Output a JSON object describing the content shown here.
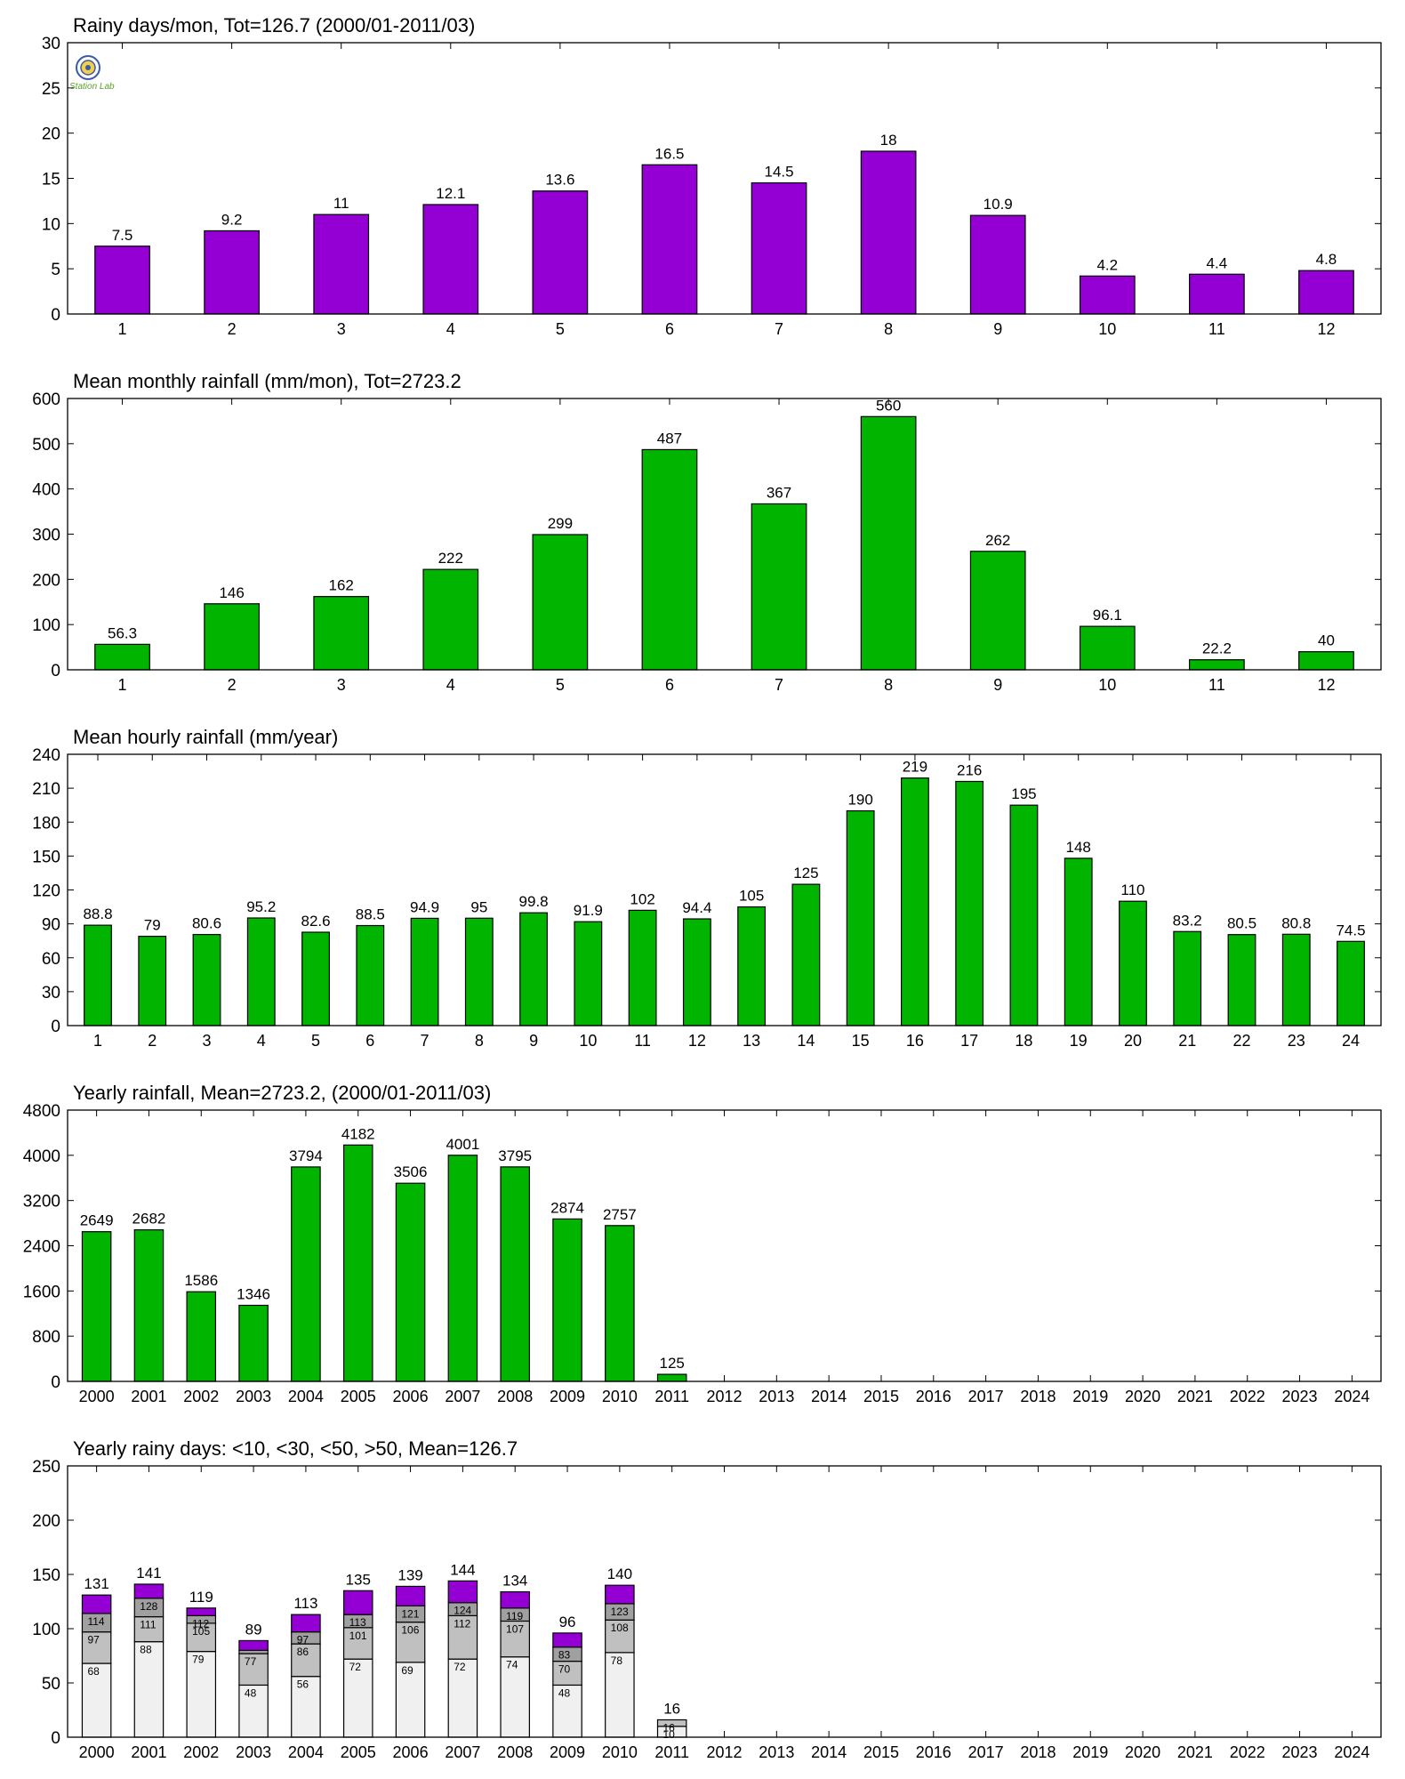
{
  "colors": {
    "purple": "#9400D3",
    "green": "#00B400",
    "gray_light": "#F0F0F0",
    "gray_mid": "#C0C0C0",
    "gray_dark": "#A0A0A0"
  },
  "logo": {
    "icon": "station-logo-icon",
    "text": "Station Lab"
  },
  "chart_data": [
    {
      "type": "bar",
      "title": "Rainy days/mon, Tot=126.7 (2000/01-2011/03)",
      "categories": [
        "1",
        "2",
        "3",
        "4",
        "5",
        "6",
        "7",
        "8",
        "9",
        "10",
        "11",
        "12"
      ],
      "values": [
        7.5,
        9.2,
        11,
        12.1,
        13.6,
        16.5,
        14.5,
        18,
        10.9,
        4.2,
        4.4,
        4.8
      ],
      "labels": [
        "7.5",
        "9.2",
        "11",
        "12.1",
        "13.6",
        "16.5",
        "14.5",
        "18",
        "10.9",
        "4.2",
        "4.4",
        "4.8"
      ],
      "ylim": [
        0,
        30
      ],
      "yticks": [
        "0",
        "5",
        "10",
        "15",
        "20",
        "25",
        "30"
      ],
      "color": "#9400D3"
    },
    {
      "type": "bar",
      "title": "Mean monthly rainfall (mm/mon), Tot=2723.2",
      "categories": [
        "1",
        "2",
        "3",
        "4",
        "5",
        "6",
        "7",
        "8",
        "9",
        "10",
        "11",
        "12"
      ],
      "values": [
        56.3,
        146,
        162,
        222,
        299,
        487,
        367,
        560,
        262,
        96.1,
        22.2,
        40
      ],
      "labels": [
        "56.3",
        "146",
        "162",
        "222",
        "299",
        "487",
        "367",
        "560",
        "262",
        "96.1",
        "22.2",
        "40"
      ],
      "ylim": [
        0,
        600
      ],
      "yticks": [
        "0",
        "100",
        "200",
        "300",
        "400",
        "500",
        "600"
      ],
      "color": "#00B400"
    },
    {
      "type": "bar",
      "title": "Mean hourly rainfall (mm/year)",
      "categories": [
        "1",
        "2",
        "3",
        "4",
        "5",
        "6",
        "7",
        "8",
        "9",
        "10",
        "11",
        "12",
        "13",
        "14",
        "15",
        "16",
        "17",
        "18",
        "19",
        "20",
        "21",
        "22",
        "23",
        "24"
      ],
      "values": [
        88.8,
        79,
        80.6,
        95.2,
        82.6,
        88.5,
        94.9,
        95,
        99.8,
        91.9,
        102,
        94.4,
        105,
        125,
        190,
        219,
        216,
        195,
        148,
        110,
        83.2,
        80.5,
        80.8,
        74.5
      ],
      "labels": [
        "88.8",
        "79",
        "80.6",
        "95.2",
        "82.6",
        "88.5",
        "94.9",
        "95",
        "99.8",
        "91.9",
        "102",
        "94.4",
        "105",
        "125",
        "190",
        "219",
        "216",
        "195",
        "148",
        "110",
        "83.2",
        "80.5",
        "80.8",
        "74.5"
      ],
      "ylim": [
        0,
        240
      ],
      "yticks": [
        "0",
        "30",
        "60",
        "90",
        "120",
        "150",
        "180",
        "210",
        "240"
      ],
      "color": "#00B400"
    },
    {
      "type": "bar",
      "title": "Yearly rainfall, Mean=2723.2, (2000/01-2011/03)",
      "categories": [
        "2000",
        "2001",
        "2002",
        "2003",
        "2004",
        "2005",
        "2006",
        "2007",
        "2008",
        "2009",
        "2010",
        "2011",
        "2012",
        "2013",
        "2014",
        "2015",
        "2016",
        "2017",
        "2018",
        "2019",
        "2020",
        "2021",
        "2022",
        "2023",
        "2024"
      ],
      "values": [
        2649,
        2682,
        1586,
        1346,
        3794,
        4182,
        3506,
        4001,
        3795,
        2874,
        2757,
        125,
        null,
        null,
        null,
        null,
        null,
        null,
        null,
        null,
        null,
        null,
        null,
        null,
        null
      ],
      "labels": [
        "2649",
        "2682",
        "1586",
        "1346",
        "3794",
        "4182",
        "3506",
        "4001",
        "3795",
        "2874",
        "2757",
        "125",
        "",
        "",
        "",
        "",
        "",
        "",
        "",
        "",
        "",
        "",
        "",
        "",
        ""
      ],
      "ylim": [
        0,
        4800
      ],
      "yticks": [
        "0",
        "800",
        "1600",
        "2400",
        "3200",
        "4000",
        "4800"
      ],
      "color": "#00B400"
    },
    {
      "type": "stacked-bar",
      "title": "Yearly rainy days: <10, <30, <50, >50, Mean=126.7",
      "categories": [
        "2000",
        "2001",
        "2002",
        "2003",
        "2004",
        "2005",
        "2006",
        "2007",
        "2008",
        "2009",
        "2010",
        "2011",
        "2012",
        "2013",
        "2014",
        "2015",
        "2016",
        "2017",
        "2018",
        "2019",
        "2020",
        "2021",
        "2022",
        "2023",
        "2024"
      ],
      "ylim": [
        0,
        250
      ],
      "yticks": [
        "0",
        "50",
        "100",
        "150",
        "200",
        "250"
      ],
      "cumulative": {
        "lt10": [
          68,
          88,
          79,
          48,
          56,
          72,
          69,
          72,
          74,
          48,
          78,
          10,
          null,
          null,
          null,
          null,
          null,
          null,
          null,
          null,
          null,
          null,
          null,
          null,
          null
        ],
        "lt30": [
          97,
          111,
          105,
          77,
          86,
          101,
          106,
          112,
          107,
          70,
          108,
          16,
          null,
          null,
          null,
          null,
          null,
          null,
          null,
          null,
          null,
          null,
          null,
          null,
          null
        ],
        "lt50": [
          114,
          128,
          112,
          80,
          97,
          113,
          121,
          124,
          119,
          83,
          123,
          16,
          null,
          null,
          null,
          null,
          null,
          null,
          null,
          null,
          null,
          null,
          null,
          null,
          null
        ],
        "total": [
          131,
          141,
          119,
          89,
          113,
          135,
          139,
          144,
          134,
          96,
          140,
          16,
          null,
          null,
          null,
          null,
          null,
          null,
          null,
          null,
          null,
          null,
          null,
          null,
          null
        ]
      },
      "labels": {
        "lt10": [
          "68",
          "88",
          "79",
          "48",
          "56",
          "72",
          "69",
          "72",
          "74",
          "48",
          "78",
          "10",
          "",
          "",
          "",
          "",
          "",
          "",
          "",
          "",
          "",
          "",
          "",
          "",
          ""
        ],
        "lt30": [
          "97",
          "111",
          "105",
          "77",
          "86",
          "101",
          "106",
          "112",
          "107",
          "70",
          "108",
          "16",
          "",
          "",
          "",
          "",
          "",
          "",
          "",
          "",
          "",
          "",
          "",
          "",
          ""
        ],
        "lt50": [
          "114",
          "128",
          "112",
          "",
          "97",
          "113",
          "121",
          "124",
          "119",
          "83",
          "123",
          "",
          "",
          "",
          "",
          "",
          "",
          "",
          "",
          "",
          "",
          "",
          "",
          "",
          ""
        ],
        "total": [
          "131",
          "141",
          "119",
          "89",
          "113",
          "135",
          "139",
          "144",
          "134",
          "96",
          "140",
          "16",
          "",
          "",
          "",
          "",
          "",
          "",
          "",
          "",
          "",
          "",
          "",
          "",
          ""
        ]
      },
      "colors": [
        "#F0F0F0",
        "#C0C0C0",
        "#A0A0A0",
        "#9400D3"
      ]
    }
  ]
}
